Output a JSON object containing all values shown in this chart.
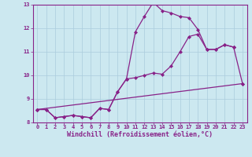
{
  "title": "",
  "xlabel": "Windchill (Refroidissement éolien,°C)",
  "ylabel": "",
  "xlim": [
    -0.5,
    23.5
  ],
  "ylim": [
    8,
    13
  ],
  "xticks": [
    0,
    1,
    2,
    3,
    4,
    5,
    6,
    7,
    8,
    9,
    10,
    11,
    12,
    13,
    14,
    15,
    16,
    17,
    18,
    19,
    20,
    21,
    22,
    23
  ],
  "yticks": [
    8,
    9,
    10,
    11,
    12,
    13
  ],
  "background_color": "#cce8f0",
  "line_color": "#882288",
  "grid_color": "#aaccdd",
  "series": [
    {
      "x": [
        0,
        1,
        2,
        3,
        4,
        5,
        6,
        7,
        8,
        9,
        10,
        11,
        12,
        13,
        14,
        15,
        16,
        17,
        18,
        19,
        20,
        21,
        22
      ],
      "y": [
        8.55,
        8.55,
        8.2,
        8.25,
        8.3,
        8.25,
        8.2,
        8.6,
        8.55,
        9.3,
        9.85,
        11.85,
        12.5,
        13.1,
        12.75,
        12.65,
        12.5,
        12.45,
        11.95,
        11.1,
        11.1,
        11.3,
        11.2
      ]
    },
    {
      "x": [
        0,
        1,
        2,
        3,
        4,
        5,
        6,
        7,
        8,
        9,
        10,
        11,
        12,
        13,
        14,
        15,
        16,
        17,
        18,
        19,
        20,
        21,
        22
      ],
      "y": [
        8.55,
        8.55,
        8.2,
        8.25,
        8.3,
        8.25,
        8.2,
        8.6,
        8.55,
        9.3,
        9.85,
        9.9,
        10.0,
        10.1,
        10.05,
        10.4,
        11.0,
        11.65,
        11.75,
        11.1,
        11.1,
        11.3,
        11.2
      ]
    },
    {
      "x": [
        0,
        23
      ],
      "y": [
        8.55,
        9.65
      ]
    },
    {
      "x": [
        22,
        23
      ],
      "y": [
        11.2,
        9.65
      ]
    }
  ],
  "tick_fontsize": 5.0,
  "xlabel_fontsize": 6.0,
  "marker": "D",
  "markersize": 2.0,
  "linewidth": 0.9
}
